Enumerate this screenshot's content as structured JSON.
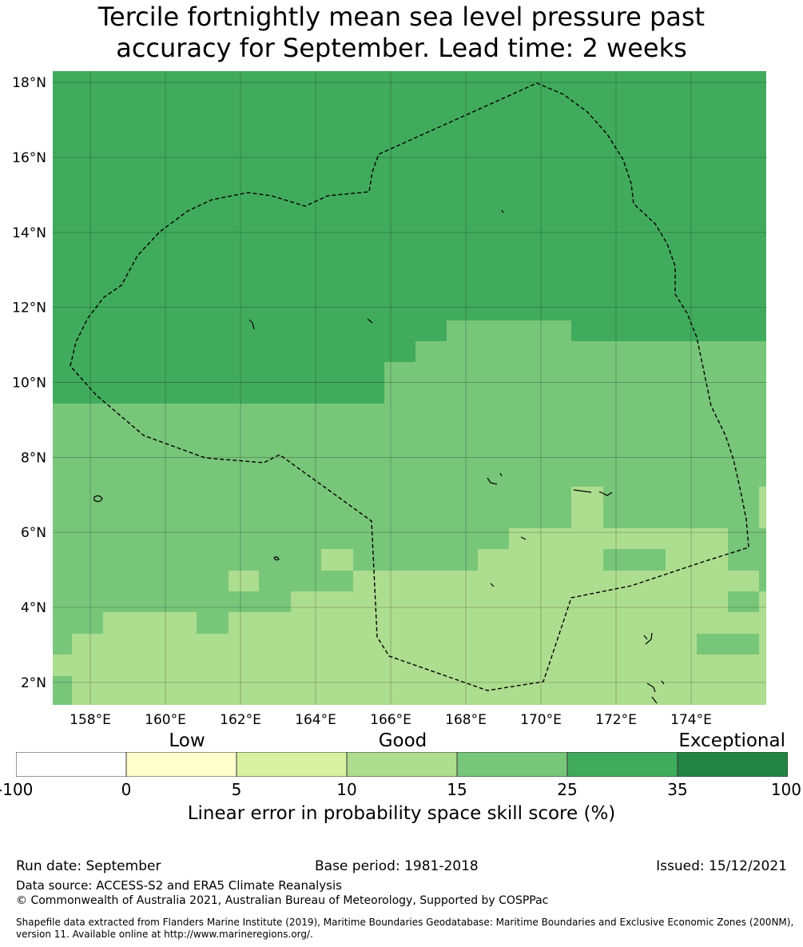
{
  "title": {
    "line1": "Tercile fortnightly mean sea level pressure past",
    "line2": "accuracy for September. Lead time: 2 weeks"
  },
  "map": {
    "lon_range": [
      157,
      176
    ],
    "lat_range": [
      1.4,
      18.3
    ],
    "lon_ticks": [
      "158°E",
      "160°E",
      "162°E",
      "164°E",
      "166°E",
      "168°E",
      "170°E",
      "172°E",
      "174°E"
    ],
    "lat_ticks": [
      "18°N",
      "16°N",
      "14°N",
      "12°N",
      "10°N",
      "8°N",
      "6°N",
      "4°N",
      "2°N"
    ],
    "gridlines": true,
    "colors": {
      "skill_25_35": "#41ab5d",
      "skill_15_25": "#78c679",
      "skill_10_15": "#addd8e",
      "boundary": "#000000"
    }
  },
  "colorbar": {
    "categories": {
      "low": "Low",
      "good": "Good",
      "exceptional": "Exceptional"
    },
    "ticks": [
      "-100",
      "0",
      "5",
      "10",
      "15",
      "25",
      "35",
      "100"
    ],
    "colors": [
      "#ffffff",
      "#ffffcc",
      "#d9f0a3",
      "#addd8e",
      "#78c679",
      "#41ab5d",
      "#238443"
    ],
    "label": "Linear error in probability space skill score (%)"
  },
  "footer": {
    "run_date": "Run date: September",
    "base_period": "Base period: 1981-2018",
    "issued": "Issued: 15/12/2021",
    "data_source": "Data source: ACCESS-S2 and ERA5 Climate Reanalysis",
    "copyright": "© Commonwealth of Australia 2021, Australian Bureau of Meteorology, Supported by COSPPac",
    "shapefile": "Shapefile data extracted from Flanders Marine Institute (2019), Maritime Boundaries Geodatabase: Maritime Boundaries and Exclusive Economic Zones (200NM), version 11. Available online at http://www.marineregions.org/."
  }
}
